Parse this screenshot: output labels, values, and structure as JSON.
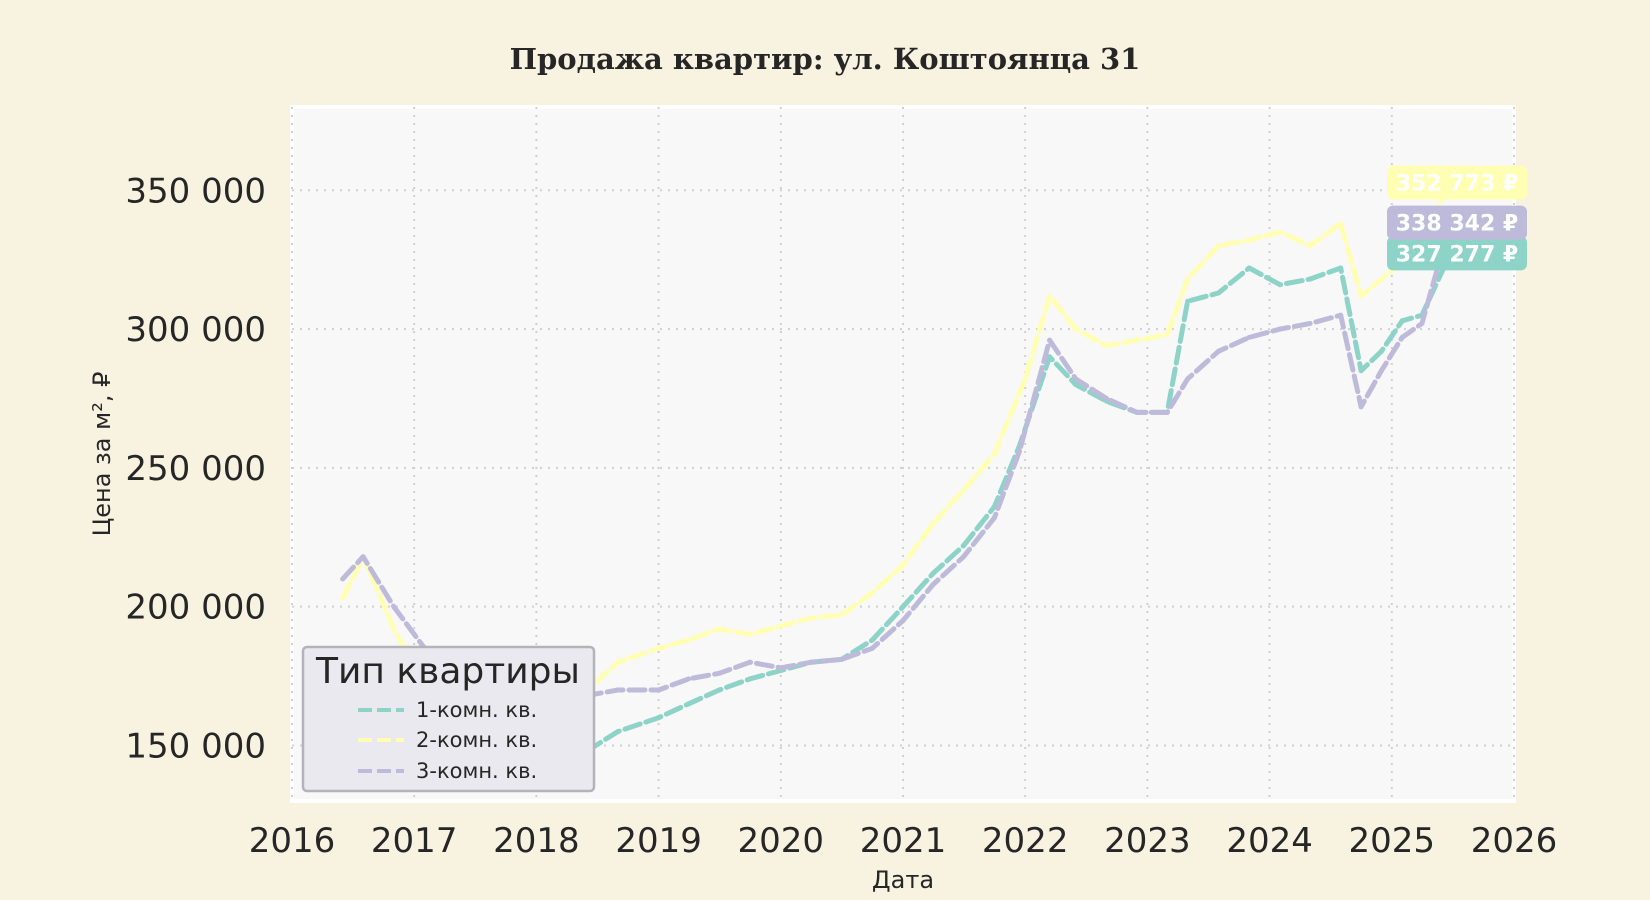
{
  "chart_data": {
    "type": "line",
    "title": "Продажа квартир: ул. Коштоянца 31",
    "xlabel": "Дата",
    "ylabel": "Цена за м², ₽",
    "xlim": [
      "2016-01-01",
      "2026-01-01"
    ],
    "ylim": [
      130000,
      380000
    ],
    "x_ticks": [
      "2016",
      "2017",
      "2018",
      "2019",
      "2020",
      "2021",
      "2022",
      "2023",
      "2024",
      "2025",
      "2026"
    ],
    "y_ticks": [
      "150 000",
      "200 000",
      "250 000",
      "300 000",
      "350 000"
    ],
    "y_tick_values": [
      150000,
      200000,
      250000,
      300000,
      350000
    ],
    "grid": true,
    "legend": {
      "title": "Тип квартиры",
      "placement": "bottom-left"
    },
    "series": [
      {
        "name": "1-комн. кв.",
        "color": "#8dd3c7",
        "end_label": "327 277 ₽",
        "x": [
          "2018-06-01",
          "2018-09-01",
          "2019-01-01",
          "2019-04-01",
          "2019-07-01",
          "2019-10-01",
          "2020-01-01",
          "2020-04-01",
          "2020-07-01",
          "2020-10-01",
          "2021-01-01",
          "2021-04-01",
          "2021-07-01",
          "2021-10-01",
          "2021-12-15",
          "2022-03-15",
          "2022-06-01",
          "2022-09-01",
          "2022-12-01",
          "2023-03-01",
          "2023-05-01",
          "2023-08-01",
          "2023-11-01",
          "2024-02-01",
          "2024-05-01",
          "2024-08-01",
          "2024-10-01",
          "2024-12-01",
          "2025-02-01",
          "2025-04-01",
          "2025-06-25"
        ],
        "values": [
          148000,
          155000,
          160000,
          165000,
          170000,
          174000,
          177000,
          180000,
          181000,
          188000,
          200000,
          212000,
          222000,
          236000,
          258000,
          290000,
          280000,
          274000,
          270000,
          270000,
          310000,
          313000,
          322000,
          316000,
          318000,
          322000,
          285000,
          292000,
          303000,
          305000,
          327277
        ]
      },
      {
        "name": "2-комн. кв.",
        "color": "#ffffb3",
        "end_label": "352 773 ₽",
        "x": [
          "2016-06-01",
          "2016-08-01",
          "2016-11-01",
          "2017-02-01",
          "2017-06-01",
          "2017-10-01",
          "2018-02-01",
          "2018-06-01",
          "2018-09-01",
          "2019-01-01",
          "2019-04-01",
          "2019-07-01",
          "2019-10-01",
          "2020-01-01",
          "2020-04-01",
          "2020-07-01",
          "2020-10-01",
          "2021-01-01",
          "2021-04-01",
          "2021-07-01",
          "2021-10-01",
          "2022-01-01",
          "2022-03-15",
          "2022-06-01",
          "2022-09-01",
          "2022-12-01",
          "2023-03-01",
          "2023-05-01",
          "2023-08-01",
          "2023-11-01",
          "2024-02-01",
          "2024-05-01",
          "2024-08-01",
          "2024-10-01",
          "2024-12-01",
          "2025-02-01",
          "2025-04-01",
          "2025-06-25"
        ],
        "values": [
          203000,
          218000,
          192000,
          172000,
          160000,
          153000,
          155000,
          170000,
          180000,
          185000,
          188000,
          192000,
          190000,
          193000,
          196000,
          197000,
          205000,
          215000,
          230000,
          242000,
          255000,
          282000,
          312000,
          300000,
          294000,
          296000,
          298000,
          318000,
          330000,
          332000,
          335000,
          330000,
          338000,
          312000,
          318000,
          324000,
          333000,
          352773
        ]
      },
      {
        "name": "3-комн. кв.",
        "color": "#bebada",
        "end_label": "338 342 ₽",
        "x": [
          "2016-06-01",
          "2016-08-01",
          "2016-11-01",
          "2017-02-01",
          "2017-06-01",
          "2017-10-01",
          "2018-02-01",
          "2018-06-01",
          "2018-09-01",
          "2019-01-01",
          "2019-04-01",
          "2019-07-01",
          "2019-10-01",
          "2020-01-01",
          "2020-04-01",
          "2020-07-01",
          "2020-10-01",
          "2021-01-01",
          "2021-04-01",
          "2021-07-01",
          "2021-10-01",
          "2021-12-15",
          "2022-03-15",
          "2022-06-01",
          "2022-09-01",
          "2022-12-01",
          "2023-03-01",
          "2023-05-01",
          "2023-08-01",
          "2023-11-01",
          "2024-02-01",
          "2024-05-01",
          "2024-08-01",
          "2024-10-01",
          "2024-12-01",
          "2025-02-01",
          "2025-04-01",
          "2025-06-25"
        ],
        "values": [
          210000,
          218000,
          200000,
          185000,
          160000,
          150000,
          150000,
          168000,
          170000,
          170000,
          174000,
          176000,
          180000,
          178000,
          180000,
          181000,
          185000,
          195000,
          208000,
          218000,
          232000,
          256000,
          296000,
          282000,
          275000,
          270000,
          270000,
          282000,
          292000,
          297000,
          300000,
          302000,
          305000,
          272000,
          285000,
          297000,
          302000,
          338342
        ]
      }
    ]
  }
}
